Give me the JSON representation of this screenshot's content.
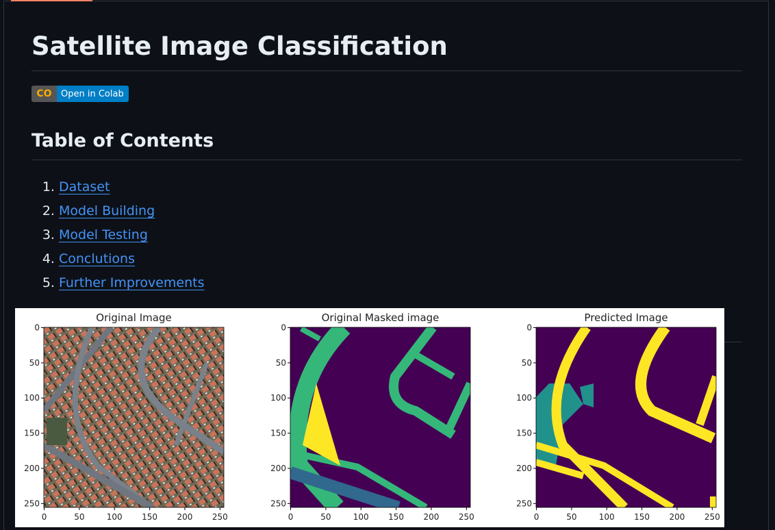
{
  "header": {
    "title": "Satellite Image Classification"
  },
  "badge": {
    "logo": "CO",
    "label": "Open in Colab",
    "left_color": "#555555",
    "right_color": "#007ec6"
  },
  "toc": {
    "title": "Table of Contents",
    "items": [
      {
        "label": "Dataset"
      },
      {
        "label": "Model Building"
      },
      {
        "label": "Model Testing"
      },
      {
        "label": "Conclutions"
      },
      {
        "label": "Further Improvements"
      }
    ]
  },
  "figure": {
    "panels": [
      {
        "title": "Original Image"
      },
      {
        "title": "Original Masked image"
      },
      {
        "title": "Predicted Image"
      }
    ],
    "xticks": [
      "0",
      "50",
      "100",
      "150",
      "200",
      "250"
    ],
    "yticks": [
      "0",
      "50",
      "100",
      "150",
      "200",
      "250"
    ],
    "mask_colors": {
      "background": "#440154",
      "road": "#35b779",
      "building": "#fde725",
      "other": "#21918c",
      "edge": "#31688e"
    }
  }
}
